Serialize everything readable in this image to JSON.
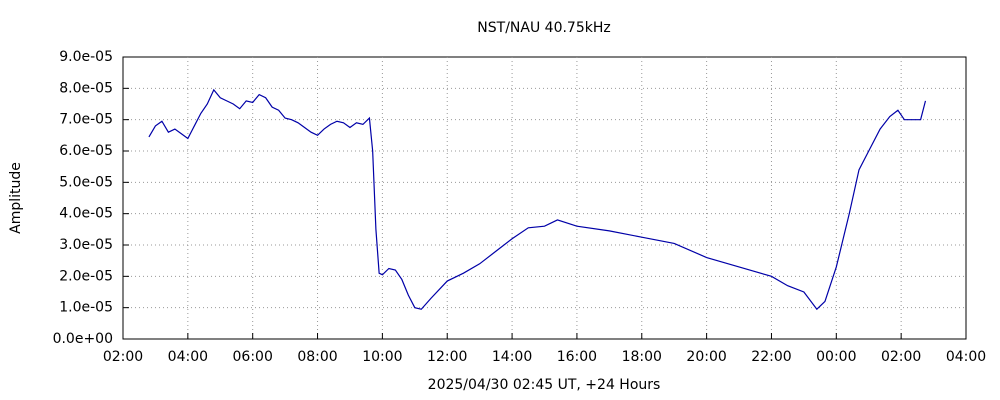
{
  "chart_data": {
    "type": "line",
    "title": "NST/NAU 40.75kHz",
    "xlabel": "2025/04/30 02:45 UT, +24 Hours",
    "ylabel": "Amplitude",
    "x": [
      2.8,
      3.0,
      3.2,
      3.4,
      3.6,
      3.8,
      4.0,
      4.2,
      4.4,
      4.6,
      4.8,
      5.0,
      5.2,
      5.4,
      5.6,
      5.8,
      6.0,
      6.2,
      6.4,
      6.6,
      6.8,
      7.0,
      7.2,
      7.4,
      7.6,
      7.8,
      8.0,
      8.2,
      8.4,
      8.6,
      8.8,
      9.0,
      9.2,
      9.4,
      9.6,
      9.7,
      9.8,
      9.9,
      10.0,
      10.2,
      10.4,
      10.6,
      10.8,
      11.0,
      11.2,
      11.5,
      12.0,
      12.5,
      13.0,
      13.5,
      14.0,
      14.5,
      15.0,
      15.4,
      16.0,
      17.0,
      18.0,
      19.0,
      20.0,
      21.0,
      22.0,
      22.5,
      23.0,
      23.4,
      23.65,
      24.0,
      24.4,
      24.7,
      25.0,
      25.35,
      25.65,
      25.9,
      26.1,
      26.6,
      26.75
    ],
    "series": [
      {
        "name": "Amplitude",
        "color": "#0000a8",
        "values": [
          6.45e-05,
          6.8e-05,
          6.95e-05,
          6.6e-05,
          6.7e-05,
          6.55e-05,
          6.4e-05,
          6.8e-05,
          7.2e-05,
          7.5e-05,
          7.95e-05,
          7.7e-05,
          7.6e-05,
          7.5e-05,
          7.35e-05,
          7.6e-05,
          7.55e-05,
          7.8e-05,
          7.7e-05,
          7.4e-05,
          7.3e-05,
          7.05e-05,
          7e-05,
          6.9e-05,
          6.75e-05,
          6.6e-05,
          6.5e-05,
          6.7e-05,
          6.85e-05,
          6.95e-05,
          6.9e-05,
          6.75e-05,
          6.9e-05,
          6.85e-05,
          7.05e-05,
          6e-05,
          3.5e-05,
          2.1e-05,
          2.05e-05,
          2.25e-05,
          2.2e-05,
          1.9e-05,
          1.4e-05,
          1e-05,
          9.5e-06,
          1.3e-05,
          1.85e-05,
          2.1e-05,
          2.4e-05,
          2.8e-05,
          3.2e-05,
          3.55e-05,
          3.6e-05,
          3.8e-05,
          3.6e-05,
          3.45e-05,
          3.25e-05,
          3.05e-05,
          2.6e-05,
          2.3e-05,
          2e-05,
          1.7e-05,
          1.5e-05,
          9.5e-06,
          1.2e-05,
          2.3e-05,
          4e-05,
          5.4e-05,
          6e-05,
          6.7e-05,
          7.1e-05,
          7.3e-05,
          7e-05,
          7e-05,
          7.6e-05
        ]
      }
    ],
    "xlim": [
      2,
      28
    ],
    "xticks": [
      {
        "value": 2,
        "label": "02:00"
      },
      {
        "value": 4,
        "label": "04:00"
      },
      {
        "value": 6,
        "label": "06:00"
      },
      {
        "value": 8,
        "label": "08:00"
      },
      {
        "value": 10,
        "label": "10:00"
      },
      {
        "value": 12,
        "label": "12:00"
      },
      {
        "value": 14,
        "label": "14:00"
      },
      {
        "value": 16,
        "label": "16:00"
      },
      {
        "value": 18,
        "label": "18:00"
      },
      {
        "value": 20,
        "label": "20:00"
      },
      {
        "value": 22,
        "label": "22:00"
      },
      {
        "value": 24,
        "label": "00:00"
      },
      {
        "value": 26,
        "label": "02:00"
      },
      {
        "value": 28,
        "label": "04:00"
      }
    ],
    "ylim": [
      0,
      9e-05
    ],
    "yticks": [
      {
        "value": 0,
        "label": "0.0e+00"
      },
      {
        "value": 1e-05,
        "label": "1.0e-05"
      },
      {
        "value": 2e-05,
        "label": "2.0e-05"
      },
      {
        "value": 3e-05,
        "label": "3.0e-05"
      },
      {
        "value": 4e-05,
        "label": "4.0e-05"
      },
      {
        "value": 5e-05,
        "label": "5.0e-05"
      },
      {
        "value": 6e-05,
        "label": "6.0e-05"
      },
      {
        "value": 7e-05,
        "label": "7.0e-05"
      },
      {
        "value": 8e-05,
        "label": "8.0e-05"
      },
      {
        "value": 9e-05,
        "label": "9.0e-05"
      }
    ],
    "grid": true
  }
}
